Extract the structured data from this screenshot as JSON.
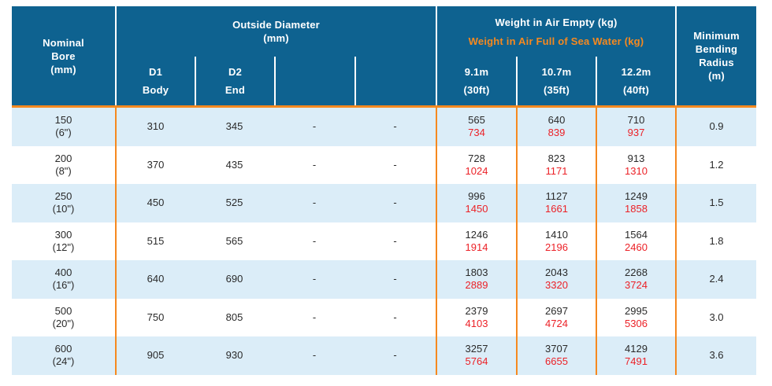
{
  "colors": {
    "header_background": "#0E6290",
    "row_alt_background": "#DBEDF8",
    "accent_orange": "#F6891F",
    "weight_full_red": "#EC2127",
    "header_text": "#FFFFFF",
    "body_text": "#2A2A2A"
  },
  "header": {
    "nominal_bore": {
      "lines": [
        "Nominal",
        "Bore",
        "(mm)"
      ]
    },
    "outside_diameter": {
      "title": "Outside Diameter",
      "unit": "(mm)",
      "subcols": [
        {
          "line1": "D1",
          "line2": "Body"
        },
        {
          "line1": "D2",
          "line2": "End"
        },
        {
          "line1": "",
          "line2": ""
        },
        {
          "line1": "",
          "line2": ""
        }
      ]
    },
    "weight": {
      "title_empty": "Weight in Air Empty (kg)",
      "title_full": "Weight in Air Full of Sea Water (kg)",
      "subcols": [
        {
          "line1": "9.1m",
          "line2": "(30ft)"
        },
        {
          "line1": "10.7m",
          "line2": "(35ft)"
        },
        {
          "line1": "12.2m",
          "line2": "(40ft)"
        }
      ]
    },
    "min_bending_radius": {
      "lines": [
        "Minimum",
        "Bending",
        "Radius",
        "(m)"
      ]
    }
  },
  "rows": [
    {
      "nominal_bore": "150",
      "nominal_bore_inches": "(6\")",
      "d1_body": "310",
      "d2_end": "345",
      "col3": "-",
      "col4": "-",
      "weights": [
        {
          "empty": "565",
          "full": "734"
        },
        {
          "empty": "640",
          "full": "839"
        },
        {
          "empty": "710",
          "full": "937"
        }
      ],
      "min_bending_radius": "0.9"
    },
    {
      "nominal_bore": "200",
      "nominal_bore_inches": "(8\")",
      "d1_body": "370",
      "d2_end": "435",
      "col3": "-",
      "col4": "-",
      "weights": [
        {
          "empty": "728",
          "full": "1024"
        },
        {
          "empty": "823",
          "full": "1171"
        },
        {
          "empty": "913",
          "full": "1310"
        }
      ],
      "min_bending_radius": "1.2"
    },
    {
      "nominal_bore": "250",
      "nominal_bore_inches": "(10\")",
      "d1_body": "450",
      "d2_end": "525",
      "col3": "-",
      "col4": "-",
      "weights": [
        {
          "empty": "996",
          "full": "1450"
        },
        {
          "empty": "1127",
          "full": "1661"
        },
        {
          "empty": "1249",
          "full": "1858"
        }
      ],
      "min_bending_radius": "1.5"
    },
    {
      "nominal_bore": "300",
      "nominal_bore_inches": "(12\")",
      "d1_body": "515",
      "d2_end": "565",
      "col3": "-",
      "col4": "-",
      "weights": [
        {
          "empty": "1246",
          "full": "1914"
        },
        {
          "empty": "1410",
          "full": "2196"
        },
        {
          "empty": "1564",
          "full": "2460"
        }
      ],
      "min_bending_radius": "1.8"
    },
    {
      "nominal_bore": "400",
      "nominal_bore_inches": "(16\")",
      "d1_body": "640",
      "d2_end": "690",
      "col3": "-",
      "col4": "-",
      "weights": [
        {
          "empty": "1803",
          "full": "2889"
        },
        {
          "empty": "2043",
          "full": "3320"
        },
        {
          "empty": "2268",
          "full": "3724"
        }
      ],
      "min_bending_radius": "2.4"
    },
    {
      "nominal_bore": "500",
      "nominal_bore_inches": "(20\")",
      "d1_body": "750",
      "d2_end": "805",
      "col3": "-",
      "col4": "-",
      "weights": [
        {
          "empty": "2379",
          "full": "4103"
        },
        {
          "empty": "2697",
          "full": "4724"
        },
        {
          "empty": "2995",
          "full": "5306"
        }
      ],
      "min_bending_radius": "3.0"
    },
    {
      "nominal_bore": "600",
      "nominal_bore_inches": "(24\")",
      "d1_body": "905",
      "d2_end": "930",
      "col3": "-",
      "col4": "-",
      "weights": [
        {
          "empty": "3257",
          "full": "5764"
        },
        {
          "empty": "3707",
          "full": "6655"
        },
        {
          "empty": "4129",
          "full": "7491"
        }
      ],
      "min_bending_radius": "3.6"
    }
  ]
}
